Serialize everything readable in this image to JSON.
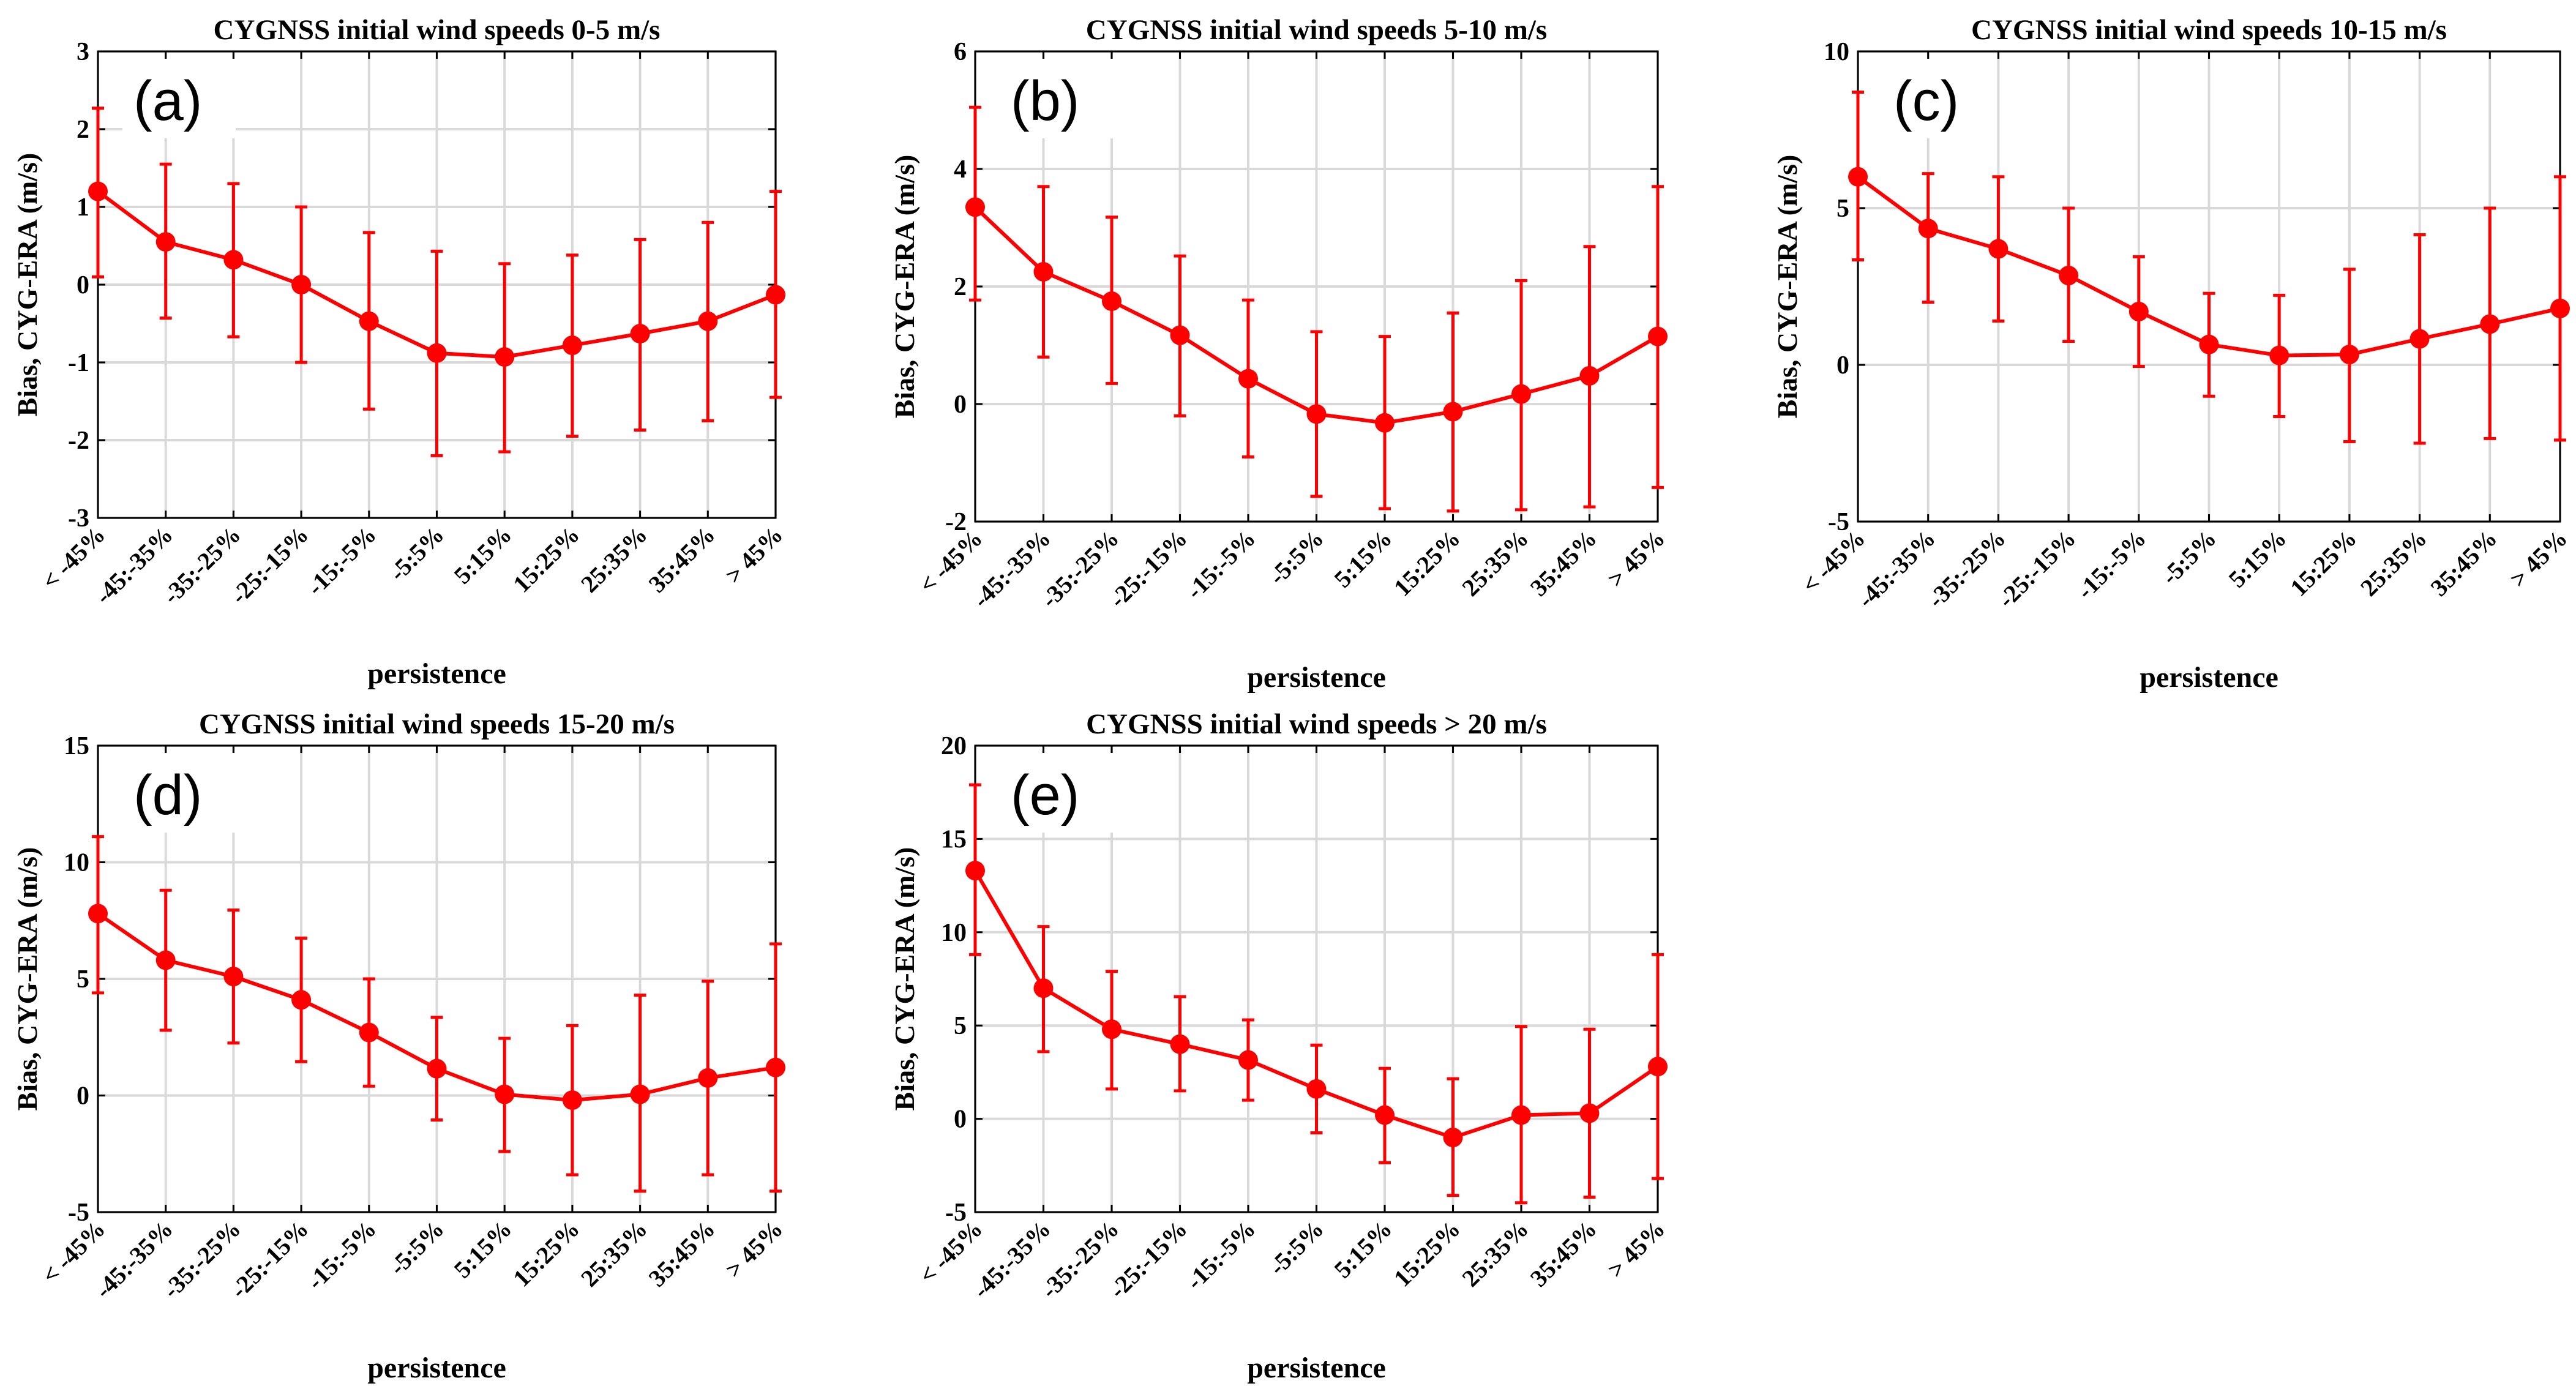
{
  "chart_data": [
    {
      "type": "line",
      "panel_label": "(a)",
      "title": "CYGNSS initial wind speeds 0-5 m/s",
      "xlabel": "persistence",
      "ylabel": "Bias, CYG-ERA (m/s)",
      "categories": [
        "< -45%",
        "-45:-35%",
        "-35:-25%",
        "-25:-15%",
        "-15:-5%",
        "-5:5%",
        "5:15%",
        "15:25%",
        "25:35%",
        "35:45%",
        "> 45%"
      ],
      "values": [
        1.2,
        0.55,
        0.32,
        0.0,
        -0.47,
        -0.88,
        -0.93,
        -0.78,
        -0.63,
        -0.47,
        -0.13
      ],
      "error_low": [
        0.1,
        -0.43,
        -0.67,
        -1.0,
        -1.6,
        -2.2,
        -2.15,
        -1.95,
        -1.87,
        -1.75,
        -1.45
      ],
      "error_high": [
        2.27,
        1.55,
        1.3,
        1.0,
        0.67,
        0.43,
        0.27,
        0.38,
        0.58,
        0.8,
        1.2
      ],
      "ylim": [
        -3,
        3
      ],
      "yticks": [
        -3,
        -2,
        -1,
        0,
        1,
        2,
        3
      ],
      "grid": true
    },
    {
      "type": "line",
      "panel_label": "(b)",
      "title": "CYGNSS initial wind speeds 5-10 m/s",
      "xlabel": "persistence",
      "ylabel": "Bias, CYG-ERA (m/s)",
      "categories": [
        "< -45%",
        "-45:-35%",
        "-35:-25%",
        "-25:-15%",
        "-15:-5%",
        "-5:5%",
        "5:15%",
        "15:25%",
        "25:35%",
        "35:45%",
        "> 45%"
      ],
      "values": [
        3.35,
        2.25,
        1.75,
        1.17,
        0.43,
        -0.17,
        -0.32,
        -0.13,
        0.17,
        0.48,
        1.15
      ],
      "error_low": [
        1.77,
        0.8,
        0.35,
        -0.2,
        -0.9,
        -1.57,
        -1.78,
        -1.82,
        -1.8,
        -1.75,
        -1.42
      ],
      "error_high": [
        5.05,
        3.7,
        3.18,
        2.52,
        1.77,
        1.23,
        1.15,
        1.55,
        2.1,
        2.68,
        3.7
      ],
      "ylim": [
        -2,
        6
      ],
      "yticks": [
        -2,
        0,
        2,
        4,
        6
      ],
      "grid": true
    },
    {
      "type": "line",
      "panel_label": "(c)",
      "title": "CYGNSS initial wind speeds 10-15 m/s",
      "xlabel": "persistence",
      "ylabel": "Bias, CYG-ERA (m/s)",
      "categories": [
        "< -45%",
        "-45:-35%",
        "-35:-25%",
        "-25:-15%",
        "-15:-5%",
        "-5:5%",
        "5:15%",
        "15:25%",
        "25:35%",
        "35:45%",
        "> 45%"
      ],
      "values": [
        6.0,
        4.35,
        3.7,
        2.85,
        1.7,
        0.65,
        0.3,
        0.33,
        0.83,
        1.3,
        1.8
      ],
      "error_low": [
        3.35,
        2.0,
        1.4,
        0.75,
        -0.05,
        -1.0,
        -1.65,
        -2.45,
        -2.5,
        -2.35,
        -2.4
      ],
      "error_high": [
        8.7,
        6.1,
        6.0,
        5.0,
        3.45,
        2.28,
        2.22,
        3.05,
        4.15,
        5.0,
        6.0
      ],
      "ylim": [
        -5,
        10
      ],
      "yticks": [
        -5,
        0,
        5,
        10
      ],
      "grid": true
    },
    {
      "type": "line",
      "panel_label": "(d)",
      "title": "CYGNSS initial wind speeds 15-20 m/s",
      "xlabel": "persistence",
      "ylabel": "Bias, CYG-ERA (m/s)",
      "categories": [
        "< -45%",
        "-45:-35%",
        "-35:-25%",
        "-25:-15%",
        "-15:-5%",
        "-5:5%",
        "5:15%",
        "15:25%",
        "25:35%",
        "35:45%",
        "> 45%"
      ],
      "values": [
        7.8,
        5.8,
        5.1,
        4.1,
        2.7,
        1.15,
        0.05,
        -0.2,
        0.05,
        0.75,
        1.2
      ],
      "error_low": [
        4.4,
        2.8,
        2.25,
        1.45,
        0.4,
        -1.05,
        -2.4,
        -3.4,
        -4.1,
        -3.4,
        -4.1
      ],
      "error_high": [
        11.1,
        8.8,
        7.95,
        6.75,
        5.0,
        3.35,
        2.45,
        3.0,
        4.3,
        4.9,
        6.5
      ],
      "ylim": [
        -5,
        15
      ],
      "yticks": [
        -5,
        0,
        5,
        10,
        15
      ],
      "grid": true
    },
    {
      "type": "line",
      "panel_label": "(e)",
      "title": "CYGNSS initial wind speeds > 20 m/s",
      "xlabel": "persistence",
      "ylabel": "Bias, CYG-ERA (m/s)",
      "categories": [
        "< -45%",
        "-45:-35%",
        "-35:-25%",
        "-25:-15%",
        "-15:-5%",
        "-5:5%",
        "5:15%",
        "15:25%",
        "25:35%",
        "35:45%",
        "> 45%"
      ],
      "values": [
        13.3,
        7.0,
        4.8,
        4.0,
        3.15,
        1.6,
        0.2,
        -1.0,
        0.2,
        0.3,
        2.8
      ],
      "error_low": [
        8.8,
        3.6,
        1.6,
        1.5,
        1.0,
        -0.75,
        -2.35,
        -4.1,
        -4.5,
        -4.2,
        -3.2
      ],
      "error_high": [
        17.9,
        10.3,
        7.9,
        6.55,
        5.3,
        3.95,
        2.7,
        2.15,
        4.95,
        4.8,
        8.8
      ],
      "ylim": [
        -5,
        20
      ],
      "yticks": [
        -5,
        0,
        5,
        10,
        15,
        20
      ],
      "grid": true
    }
  ]
}
